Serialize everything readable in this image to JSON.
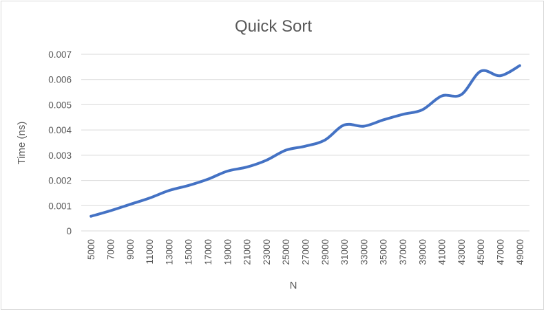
{
  "chart_data": {
    "type": "line",
    "title": "Quick Sort",
    "xlabel": "N",
    "ylabel": "Time (ns)",
    "x": [
      5000,
      7000,
      9000,
      11000,
      13000,
      15000,
      17000,
      19000,
      21000,
      23000,
      25000,
      27000,
      29000,
      31000,
      33000,
      35000,
      37000,
      39000,
      41000,
      43000,
      45000,
      47000,
      49000
    ],
    "x_tick_labels": [
      "5000",
      "7000",
      "9000",
      "11000",
      "13000",
      "15000",
      "17000",
      "19000",
      "21000",
      "23000",
      "25000",
      "27000",
      "29000",
      "31000",
      "33000",
      "35000",
      "37000",
      "39000",
      "41000",
      "43000",
      "45000",
      "47000",
      "49000"
    ],
    "ylim": [
      0,
      0.007
    ],
    "y_ticks": [
      0,
      0.001,
      0.002,
      0.003,
      0.004,
      0.005,
      0.006,
      0.007
    ],
    "y_tick_labels": [
      "0",
      "0.001",
      "0.002",
      "0.003",
      "0.004",
      "0.005",
      "0.006",
      "0.007"
    ],
    "series": [
      {
        "values": [
          0.00058,
          0.0008,
          0.00105,
          0.0013,
          0.0016,
          0.0018,
          0.00205,
          0.00237,
          0.00253,
          0.0028,
          0.0032,
          0.00336,
          0.0036,
          0.0042,
          0.00415,
          0.0044,
          0.00462,
          0.0048,
          0.00535,
          0.0054,
          0.00633,
          0.00615,
          0.00655
        ],
        "color": "#4472C4"
      }
    ],
    "grid": true,
    "legend": "none",
    "smooth": true
  }
}
